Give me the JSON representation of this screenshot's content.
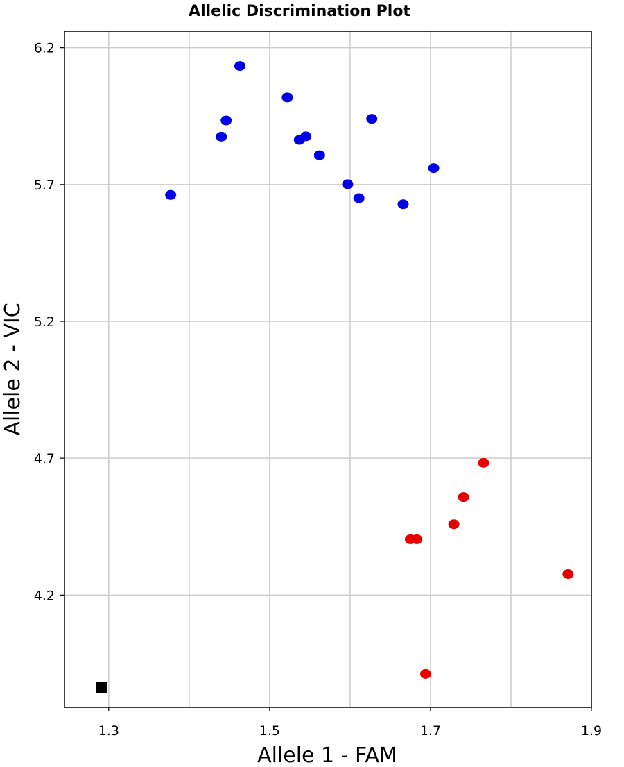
{
  "chart_data": {
    "type": "scatter",
    "title": "Allelic Discrimination Plot",
    "xlabel": "Allele 1 - FAM",
    "ylabel": "Allele 2 - VIC",
    "xlim": [
      1.245,
      1.9
    ],
    "ylim": [
      3.79,
      6.26
    ],
    "xticks": [
      1.3,
      1.5,
      1.7,
      1.9
    ],
    "yticks": [
      4.2,
      4.7,
      5.2,
      5.7,
      6.2
    ],
    "xtick_labels": [
      "1.3",
      "1.5",
      "1.7",
      "1.9"
    ],
    "ytick_labels": [
      "4.2",
      "4.7",
      "5.2",
      "5.7",
      "6.2"
    ],
    "grid": true,
    "series": [
      {
        "marker": "circle",
        "color": "#0000e6",
        "points": [
          {
            "x": 1.377,
            "y": 5.662
          },
          {
            "x": 1.44,
            "y": 5.875
          },
          {
            "x": 1.446,
            "y": 5.934
          },
          {
            "x": 1.463,
            "y": 6.133
          },
          {
            "x": 1.522,
            "y": 6.018
          },
          {
            "x": 1.537,
            "y": 5.863
          },
          {
            "x": 1.545,
            "y": 5.876
          },
          {
            "x": 1.562,
            "y": 5.807
          },
          {
            "x": 1.597,
            "y": 5.701
          },
          {
            "x": 1.611,
            "y": 5.65
          },
          {
            "x": 1.627,
            "y": 5.94
          },
          {
            "x": 1.666,
            "y": 5.628
          },
          {
            "x": 1.704,
            "y": 5.76
          }
        ]
      },
      {
        "marker": "circle",
        "color": "#e60000",
        "points": [
          {
            "x": 1.675,
            "y": 4.404
          },
          {
            "x": 1.683,
            "y": 4.404
          },
          {
            "x": 1.729,
            "y": 4.459
          },
          {
            "x": 1.741,
            "y": 4.558
          },
          {
            "x": 1.766,
            "y": 4.683
          },
          {
            "x": 1.871,
            "y": 4.277
          },
          {
            "x": 1.694,
            "y": 3.912
          }
        ]
      },
      {
        "marker": "square",
        "color": "#000000",
        "points": [
          {
            "x": 1.291,
            "y": 3.862
          }
        ]
      }
    ]
  }
}
